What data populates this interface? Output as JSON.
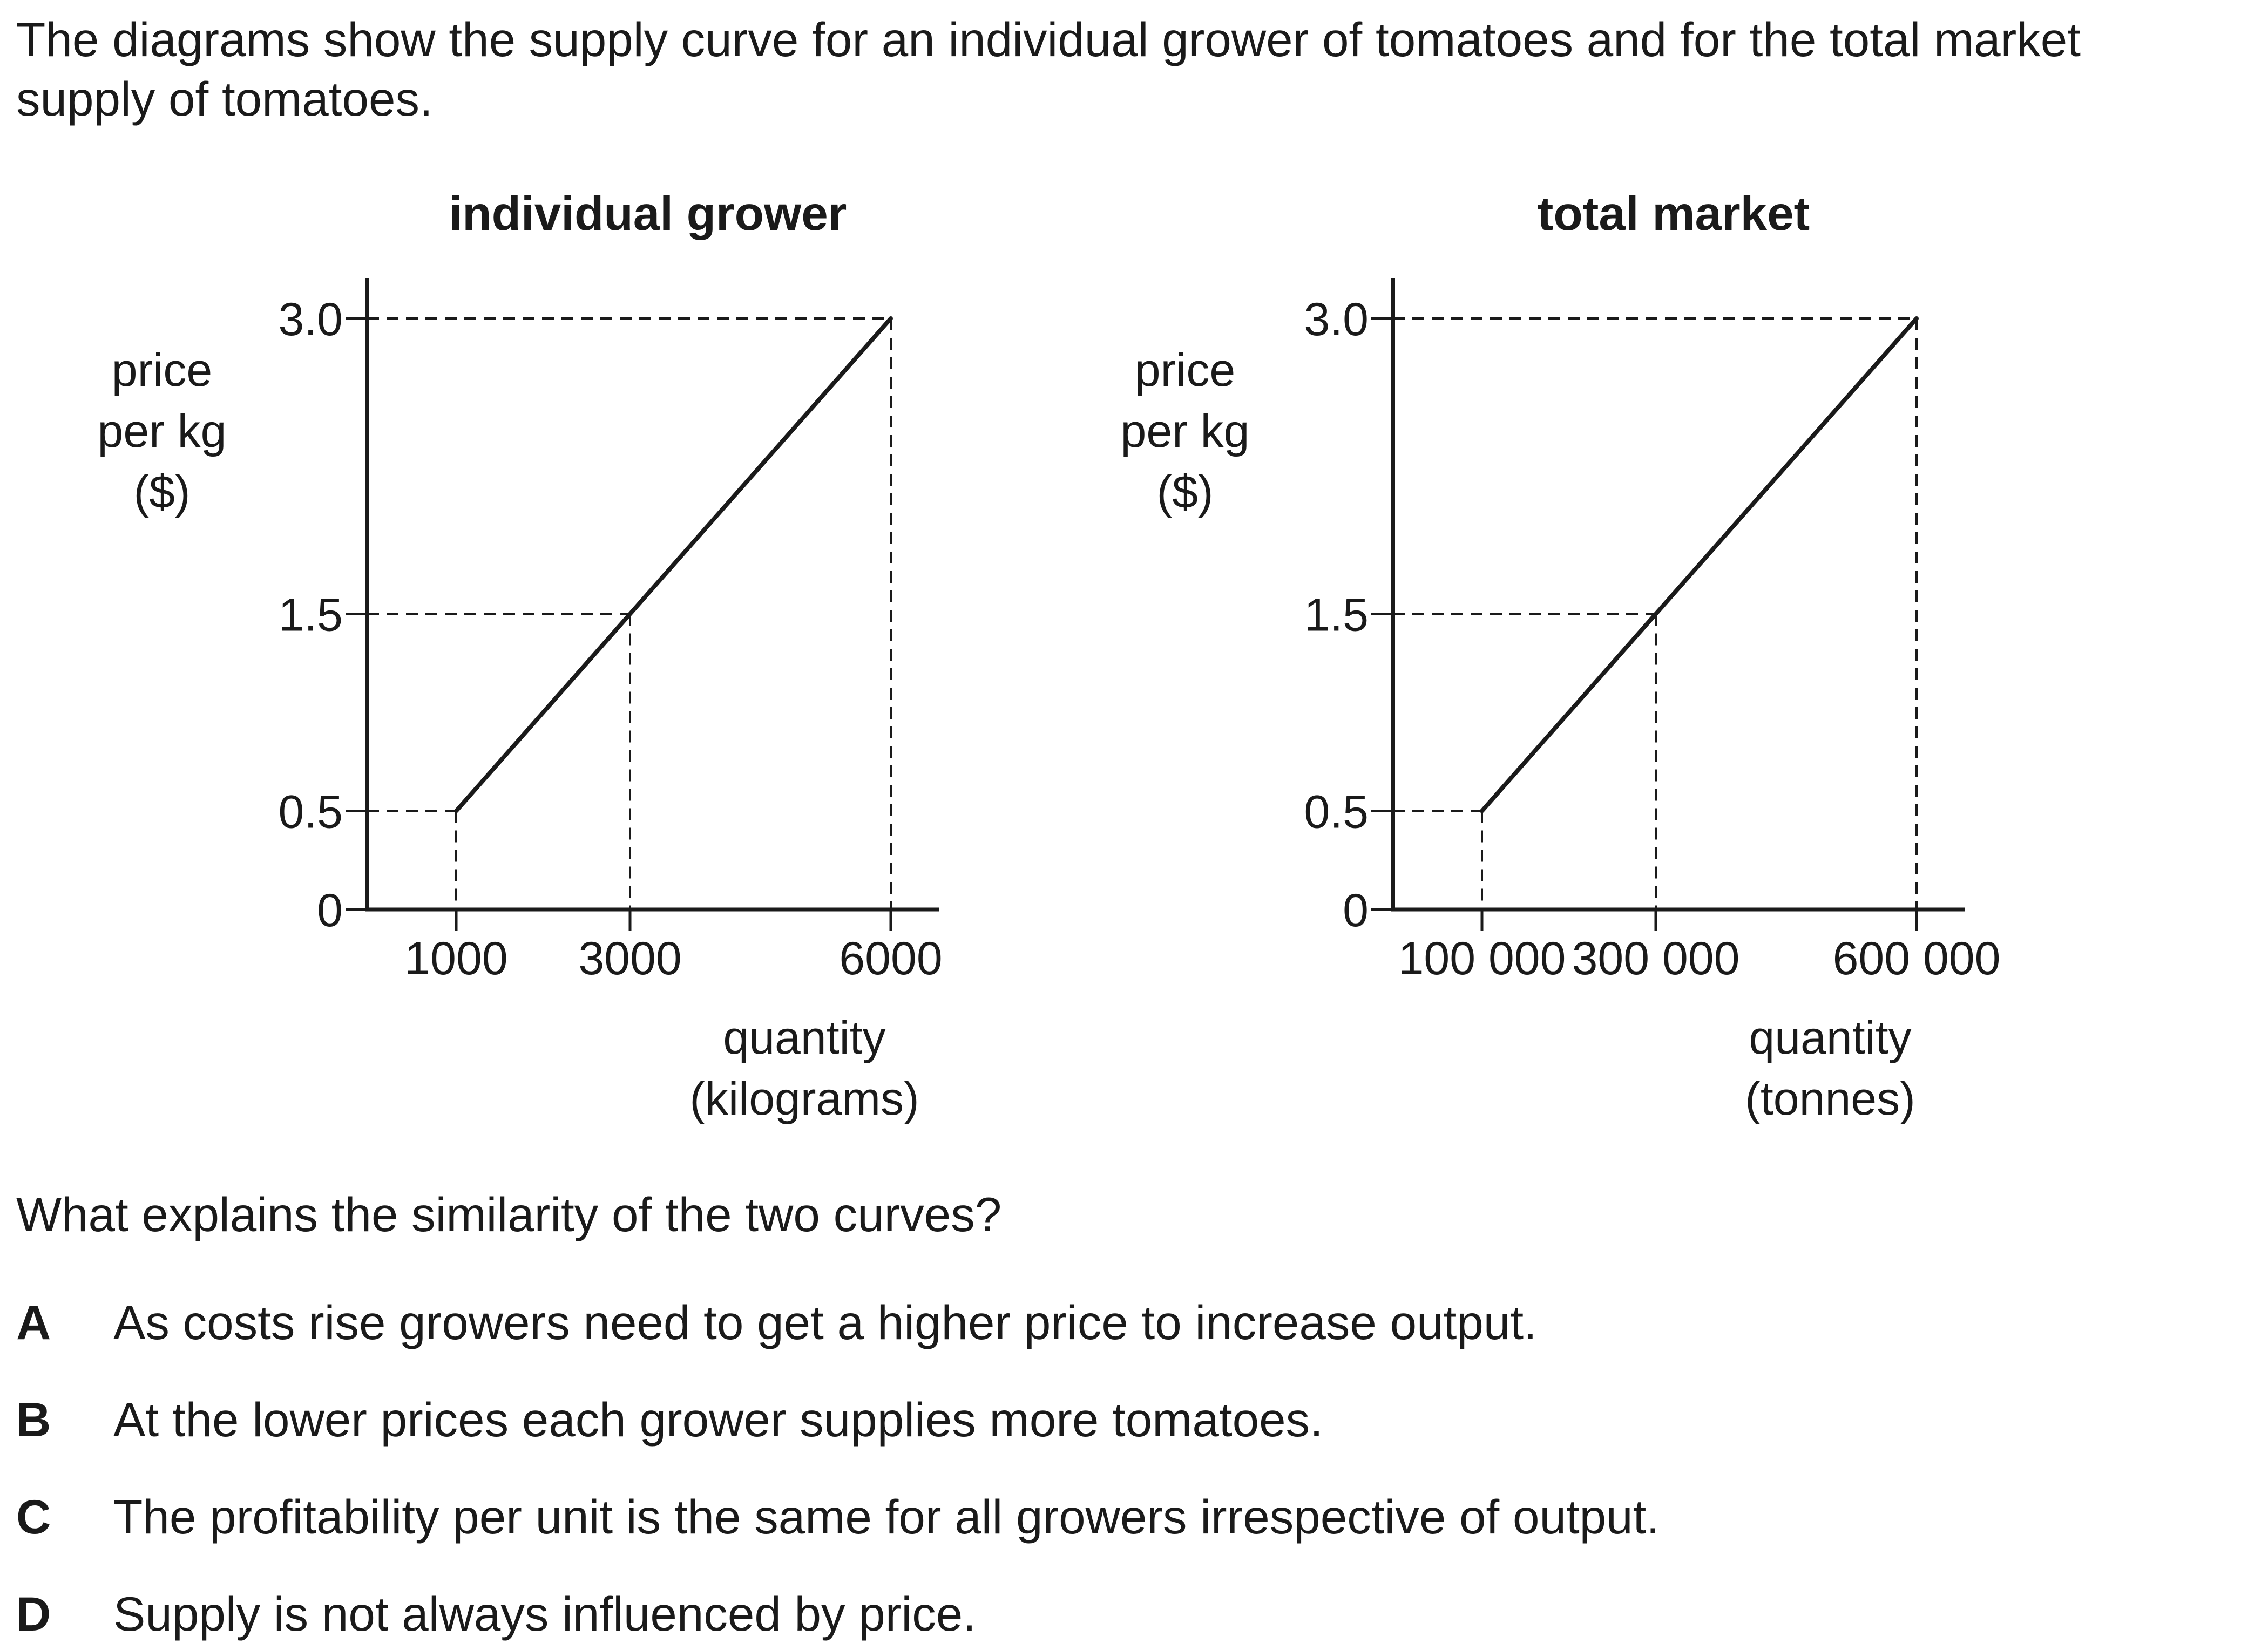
{
  "intro_text": "The diagrams show the supply curve for an individual grower of tomatoes and for the total market supply of tomatoes.",
  "chart_data": [
    {
      "type": "line",
      "title": "individual grower",
      "ylabel_lines": [
        "price",
        "per kg",
        "($)"
      ],
      "xlabel_lines": [
        "quantity",
        "(kilograms)"
      ],
      "y_ticks": [
        {
          "value": 0,
          "label": "0"
        },
        {
          "value": 0.5,
          "label": "0.5"
        },
        {
          "value": 1.5,
          "label": "1.5"
        },
        {
          "value": 3.0,
          "label": "3.0"
        }
      ],
      "x_ticks": [
        {
          "value": 1000,
          "label": "1000"
        },
        {
          "value": 3000,
          "label": "3000"
        },
        {
          "value": 6000,
          "label": "6000"
        }
      ],
      "xlim": [
        0,
        6500
      ],
      "ylim": [
        0,
        3.0
      ],
      "series": [
        {
          "x": [
            1000,
            3000,
            6000
          ],
          "y": [
            0.5,
            1.5,
            3.0
          ]
        }
      ],
      "guides": [
        {
          "x": 1000,
          "y": 0.5
        },
        {
          "x": 3000,
          "y": 1.5
        },
        {
          "x": 6000,
          "y": 3.0
        }
      ]
    },
    {
      "type": "line",
      "title": "total market",
      "ylabel_lines": [
        "price",
        "per kg",
        "($)"
      ],
      "xlabel_lines": [
        "quantity",
        "(tonnes)"
      ],
      "y_ticks": [
        {
          "value": 0,
          "label": "0"
        },
        {
          "value": 0.5,
          "label": "0.5"
        },
        {
          "value": 1.5,
          "label": "1.5"
        },
        {
          "value": 3.0,
          "label": "3.0"
        }
      ],
      "x_ticks": [
        {
          "value": 100000,
          "label": "100 000"
        },
        {
          "value": 300000,
          "label": "300 000"
        },
        {
          "value": 600000,
          "label": "600 000"
        }
      ],
      "xlim": [
        0,
        650000
      ],
      "ylim": [
        0,
        3.0
      ],
      "series": [
        {
          "x": [
            100000,
            300000,
            600000
          ],
          "y": [
            0.5,
            1.5,
            3.0
          ]
        }
      ],
      "guides": [
        {
          "x": 100000,
          "y": 0.5
        },
        {
          "x": 300000,
          "y": 1.5
        },
        {
          "x": 600000,
          "y": 3.0
        }
      ]
    }
  ],
  "question": "What explains the similarity of the two curves?",
  "options": [
    {
      "letter": "A",
      "text": "As costs rise growers need to get a higher price to increase output."
    },
    {
      "letter": "B",
      "text": "At the lower prices each grower supplies more tomatoes."
    },
    {
      "letter": "C",
      "text": "The profitability per unit is the same for all growers irrespective of output."
    },
    {
      "letter": "D",
      "text": "Supply is not always influenced by price."
    }
  ]
}
